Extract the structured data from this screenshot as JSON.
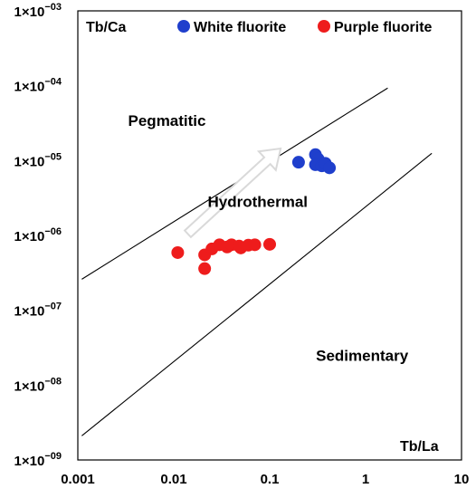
{
  "chart_data": {
    "type": "scatter",
    "x_scale": "log",
    "y_scale": "log",
    "xlim": [
      0.001,
      10
    ],
    "ylim": [
      1e-09,
      0.001
    ],
    "x_ticks": [
      {
        "value": 0.001,
        "label": "0.001"
      },
      {
        "value": 0.01,
        "label": "0.01"
      },
      {
        "value": 0.1,
        "label": "0.1"
      },
      {
        "value": 1,
        "label": "1"
      },
      {
        "value": 10,
        "label": "10"
      }
    ],
    "y_ticks": [
      {
        "value": 0.001,
        "base": "1×10",
        "exp": "−03"
      },
      {
        "value": 0.0001,
        "base": "1×10",
        "exp": "−04"
      },
      {
        "value": 1e-05,
        "base": "1×10",
        "exp": "−05"
      },
      {
        "value": 1e-06,
        "base": "1×10",
        "exp": "−06"
      },
      {
        "value": 1e-07,
        "base": "1×10",
        "exp": "−07"
      },
      {
        "value": 1e-08,
        "base": "1×10",
        "exp": "−08"
      },
      {
        "value": 1e-09,
        "base": "1×10",
        "exp": "−09"
      }
    ],
    "ylabel": "Tb/Ca",
    "xlabel": "Tb/La",
    "grid": false,
    "legend_position": "top",
    "series": [
      {
        "name": "White fluorite",
        "color": "#1f3fcc",
        "points": [
          {
            "x": 0.2,
            "y": 9.5e-06
          },
          {
            "x": 0.3,
            "y": 1.2e-05
          },
          {
            "x": 0.32,
            "y": 1.05e-05
          },
          {
            "x": 0.3,
            "y": 8.8e-06
          },
          {
            "x": 0.35,
            "y": 8.5e-06
          },
          {
            "x": 0.38,
            "y": 9.2e-06
          },
          {
            "x": 0.42,
            "y": 8e-06
          }
        ]
      },
      {
        "name": "Purple fluorite",
        "color": "#ee1c1c",
        "points": [
          {
            "x": 0.011,
            "y": 5.9e-07
          },
          {
            "x": 0.021,
            "y": 3.6e-07
          },
          {
            "x": 0.021,
            "y": 5.5e-07
          },
          {
            "x": 0.025,
            "y": 6.6e-07
          },
          {
            "x": 0.03,
            "y": 7.5e-07
          },
          {
            "x": 0.036,
            "y": 7e-07
          },
          {
            "x": 0.04,
            "y": 7.5e-07
          },
          {
            "x": 0.048,
            "y": 7.2e-07
          },
          {
            "x": 0.05,
            "y": 6.8e-07
          },
          {
            "x": 0.06,
            "y": 7.4e-07
          },
          {
            "x": 0.07,
            "y": 7.5e-07
          },
          {
            "x": 0.1,
            "y": 7.6e-07
          }
        ]
      }
    ],
    "boundary_lines": [
      {
        "from": {
          "x": 0.0011,
          "y": 2.6e-07
        },
        "to": {
          "x": 1.7,
          "y": 9.3e-05
        }
      },
      {
        "from": {
          "x": 0.0011,
          "y": 2.1e-09
        },
        "to": {
          "x": 4.9,
          "y": 1.25e-05
        }
      }
    ],
    "trend_arrow": {
      "from": {
        "x": 0.014,
        "y": 1.05e-06
      },
      "to": {
        "x": 0.13,
        "y": 1.45e-05
      }
    },
    "regions": [
      {
        "label": "Pegmatitic",
        "x": 0.0085,
        "y": 2.9e-05
      },
      {
        "label": "Hydrothermal",
        "x": 0.075,
        "y": 2.4e-06
      },
      {
        "label": "Sedimentary",
        "x": 0.92,
        "y": 2.1e-08
      }
    ]
  }
}
